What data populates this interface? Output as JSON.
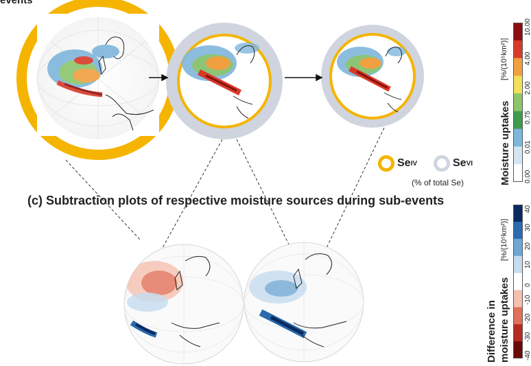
{
  "header_fragment": "events",
  "section_c_title": "(c) Subtraction plots of respective moisture sources during sub-events",
  "legend": {
    "se4_label": "Se",
    "se4_sup": "IV",
    "se6_label": "Se",
    "se6_sup": "VI",
    "note": "(% of total Se)",
    "se4_color": "#f5b400",
    "se6_color": "#cfd4df"
  },
  "colorbar_top": {
    "title": "Moisture uptakes",
    "unit": "[%/(10⁵km²)]",
    "ticks": [
      "0.00",
      "0.01",
      "0.75",
      "2.00",
      "4.00",
      "10.00"
    ],
    "colors": [
      "#ffffff",
      "#d4e6f4",
      "#7fb6dc",
      "#3d9b4e",
      "#8cc56a",
      "#f0e05a",
      "#f0a040",
      "#d83a2a",
      "#8a1010"
    ]
  },
  "colorbar_bottom": {
    "title_line1": "Difference in",
    "title_line2": "moisture uptakes",
    "unit": "[%/(10⁵km²)]",
    "ticks": [
      "-40",
      "-30",
      "-20",
      "-10",
      "0",
      "10",
      "20",
      "30",
      "40"
    ],
    "colors": [
      "#6a0a0a",
      "#b52a20",
      "#e0705a",
      "#f5c0b0",
      "#ffffff",
      "#c6dcef",
      "#6fa6d3",
      "#2a6aad",
      "#0a2a60"
    ]
  },
  "circles": [
    {
      "name": "subevent-1",
      "ring_outer": "#f5b400",
      "ring_inner": "#f5b400",
      "se4_fraction": 1.0
    },
    {
      "name": "subevent-2",
      "ring_outer": "#cfd4df",
      "ring_inner": "#f5b400",
      "se4_fraction": 0.25
    },
    {
      "name": "subevent-3",
      "ring_outer": "#cfd4df",
      "ring_inner": "#f5b400",
      "se4_fraction": 0.2
    }
  ]
}
